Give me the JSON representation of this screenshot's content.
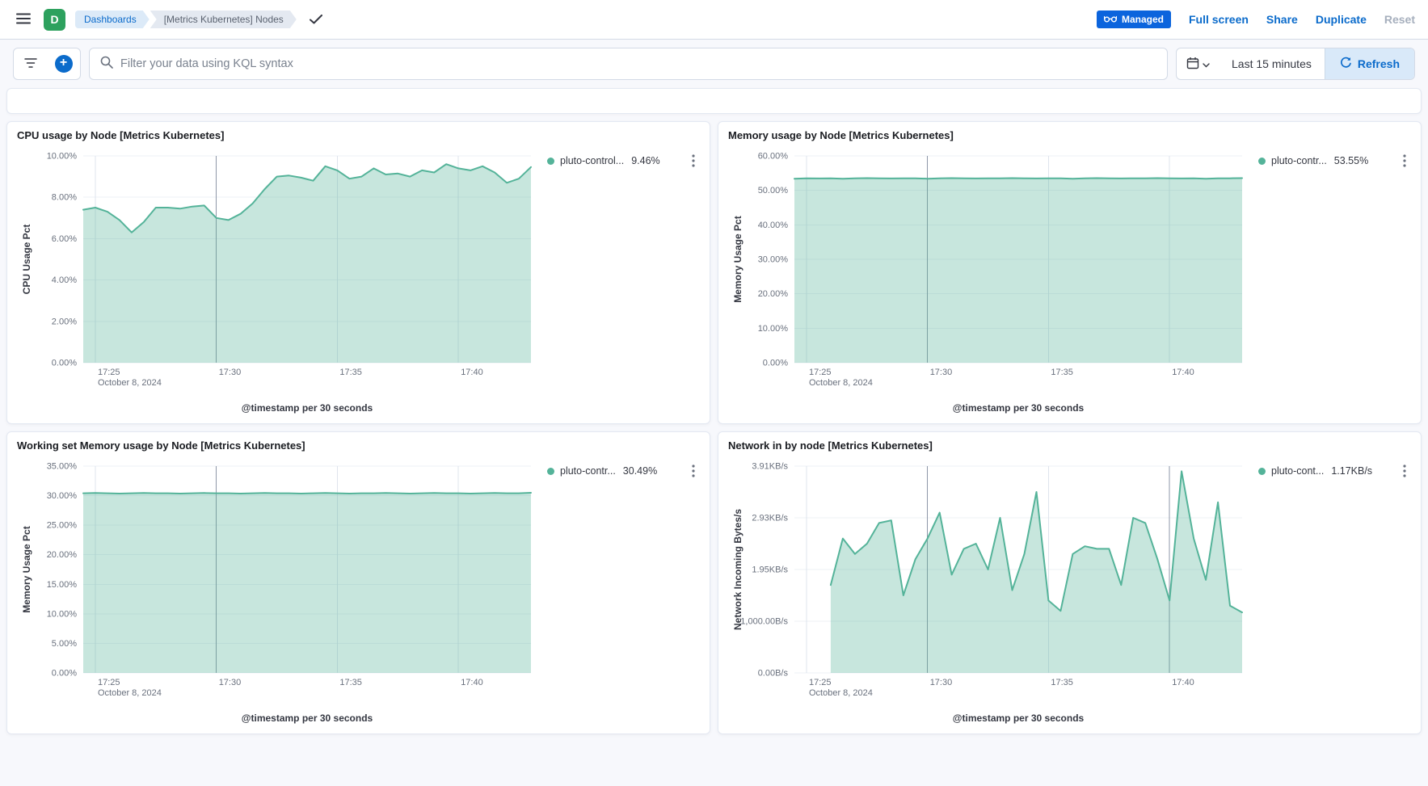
{
  "header": {
    "space_initial": "D",
    "breadcrumbs": [
      {
        "label": "Dashboards"
      },
      {
        "label": "[Metrics Kubernetes] Nodes"
      }
    ],
    "managed_badge": "Managed",
    "actions": {
      "full_screen": "Full screen",
      "share": "Share",
      "duplicate": "Duplicate",
      "reset": "Reset"
    }
  },
  "query_bar": {
    "placeholder": "Filter your data using KQL syntax",
    "time_range": "Last 15 minutes",
    "refresh_label": "Refresh"
  },
  "colors": {
    "accent_blue": "#0B6BCB",
    "managed_badge_blue": "#0B64DD",
    "space_badge_green": "#2DA15E",
    "refresh_bg": "#D9E9F9",
    "series_line": "#54B399",
    "series_fill": "rgba(84,179,153,0.33)"
  },
  "chart_data": [
    {
      "type": "area",
      "title": "CPU usage by Node [Metrics Kubernetes]",
      "ylabel": "CPU Usage Pct",
      "xlabel": "@timestamp per 30 seconds",
      "ylim": [
        0,
        10
      ],
      "yticks": [
        {
          "v": 0,
          "label": "0.00%"
        },
        {
          "v": 2,
          "label": "2.00%"
        },
        {
          "v": 4,
          "label": "4.00%"
        },
        {
          "v": 6,
          "label": "6.00%"
        },
        {
          "v": 8,
          "label": "8.00%"
        },
        {
          "v": 10,
          "label": "10.00%"
        }
      ],
      "xlim_minutes": [
        1044.5,
        1063
      ],
      "xticks": [
        {
          "v": 1045,
          "label": "17:25",
          "sublabel": "October 8, 2024"
        },
        {
          "v": 1050,
          "label": "17:30",
          "dark": true
        },
        {
          "v": 1055,
          "label": "17:35"
        },
        {
          "v": 1060,
          "label": "17:40"
        }
      ],
      "series": [
        {
          "name": "pluto-control...",
          "value_label": "9.46%",
          "x_start_minutes": 1044.5,
          "x_step_minutes": 0.5,
          "y": [
            7.4,
            7.5,
            7.3,
            6.9,
            6.3,
            6.8,
            7.5,
            7.5,
            7.45,
            7.55,
            7.6,
            7.0,
            6.9,
            7.2,
            7.7,
            8.4,
            9.0,
            9.05,
            8.95,
            8.8,
            9.5,
            9.3,
            8.9,
            9.0,
            9.4,
            9.1,
            9.15,
            9.0,
            9.3,
            9.2,
            9.6,
            9.4,
            9.3,
            9.5,
            9.2,
            8.7,
            8.9,
            9.46
          ]
        }
      ]
    },
    {
      "type": "area",
      "title": "Memory usage by Node [Metrics Kubernetes]",
      "ylabel": "Memory Usage Pct",
      "xlabel": "@timestamp per 30 seconds",
      "ylim": [
        0,
        60
      ],
      "yticks": [
        {
          "v": 0,
          "label": "0.00%"
        },
        {
          "v": 10,
          "label": "10.00%"
        },
        {
          "v": 20,
          "label": "20.00%"
        },
        {
          "v": 30,
          "label": "30.00%"
        },
        {
          "v": 40,
          "label": "40.00%"
        },
        {
          "v": 50,
          "label": "50.00%"
        },
        {
          "v": 60,
          "label": "60.00%"
        }
      ],
      "xlim_minutes": [
        1044.5,
        1063
      ],
      "xticks": [
        {
          "v": 1045,
          "label": "17:25",
          "sublabel": "October 8, 2024"
        },
        {
          "v": 1050,
          "label": "17:30",
          "dark": true
        },
        {
          "v": 1055,
          "label": "17:35"
        },
        {
          "v": 1060,
          "label": "17:40"
        }
      ],
      "series": [
        {
          "name": "pluto-contr...",
          "value_label": "53.55%",
          "x_start_minutes": 1044.5,
          "x_step_minutes": 0.5,
          "y": [
            53.4,
            53.5,
            53.45,
            53.5,
            53.4,
            53.5,
            53.55,
            53.5,
            53.45,
            53.5,
            53.5,
            53.4,
            53.5,
            53.55,
            53.5,
            53.45,
            53.5,
            53.5,
            53.55,
            53.5,
            53.45,
            53.5,
            53.5,
            53.4,
            53.5,
            53.55,
            53.5,
            53.45,
            53.5,
            53.5,
            53.55,
            53.5,
            53.45,
            53.5,
            53.4,
            53.5,
            53.5,
            53.55
          ]
        }
      ]
    },
    {
      "type": "area",
      "title": "Working set Memory usage by Node [Metrics Kubernetes]",
      "ylabel": "Memory Usage Pct",
      "xlabel": "@timestamp per 30 seconds",
      "ylim": [
        0,
        35
      ],
      "yticks": [
        {
          "v": 0,
          "label": "0.00%"
        },
        {
          "v": 5,
          "label": "5.00%"
        },
        {
          "v": 10,
          "label": "10.00%"
        },
        {
          "v": 15,
          "label": "15.00%"
        },
        {
          "v": 20,
          "label": "20.00%"
        },
        {
          "v": 25,
          "label": "25.00%"
        },
        {
          "v": 30,
          "label": "30.00%"
        },
        {
          "v": 35,
          "label": "35.00%"
        }
      ],
      "xlim_minutes": [
        1044.5,
        1063
      ],
      "xticks": [
        {
          "v": 1045,
          "label": "17:25",
          "sublabel": "October 8, 2024"
        },
        {
          "v": 1050,
          "label": "17:30",
          "dark": true
        },
        {
          "v": 1055,
          "label": "17:35"
        },
        {
          "v": 1060,
          "label": "17:40"
        }
      ],
      "series": [
        {
          "name": "pluto-contr...",
          "value_label": "30.49%",
          "x_start_minutes": 1044.5,
          "x_step_minutes": 0.5,
          "y": [
            30.4,
            30.45,
            30.4,
            30.35,
            30.4,
            30.45,
            30.4,
            30.4,
            30.35,
            30.4,
            30.45,
            30.4,
            30.4,
            30.35,
            30.4,
            30.45,
            30.4,
            30.4,
            30.35,
            30.4,
            30.45,
            30.4,
            30.35,
            30.4,
            30.4,
            30.45,
            30.4,
            30.35,
            30.4,
            30.45,
            30.4,
            30.4,
            30.35,
            30.4,
            30.45,
            30.4,
            30.4,
            30.49
          ]
        }
      ]
    },
    {
      "type": "area",
      "title": "Network in by node [Metrics Kubernetes]",
      "ylabel": "Network Incoming Bytes/s",
      "xlabel": "@timestamp per 30 seconds",
      "ylim": [
        0,
        4000
      ],
      "yticks": [
        {
          "v": 0,
          "label": "0.00B/s"
        },
        {
          "v": 1000,
          "label": "1,000.00B/s"
        },
        {
          "v": 2000,
          "label": "1.95KB/s"
        },
        {
          "v": 3000,
          "label": "2.93KB/s"
        },
        {
          "v": 4000,
          "label": "3.91KB/s"
        }
      ],
      "xlim_minutes": [
        1044.5,
        1063
      ],
      "xticks": [
        {
          "v": 1045,
          "label": "17:25",
          "sublabel": "October 8, 2024"
        },
        {
          "v": 1050,
          "label": "17:30",
          "dark": true
        },
        {
          "v": 1055,
          "label": "17:35"
        },
        {
          "v": 1060,
          "label": "17:40",
          "dark": true
        }
      ],
      "series": [
        {
          "name": "pluto-cont...",
          "value_label": "1.17KB/s",
          "x_start_minutes": 1046,
          "x_step_minutes": 0.5,
          "y": [
            1700,
            2600,
            2300,
            2500,
            2900,
            2950,
            1500,
            2200,
            2600,
            3100,
            1900,
            2400,
            2500,
            2000,
            3000,
            1600,
            2300,
            3500,
            1400,
            1200,
            2300,
            2450,
            2400,
            2400,
            1700,
            3000,
            2900,
            2200,
            1400,
            3900,
            2600,
            1800,
            3300,
            1300,
            1170
          ]
        }
      ]
    }
  ]
}
